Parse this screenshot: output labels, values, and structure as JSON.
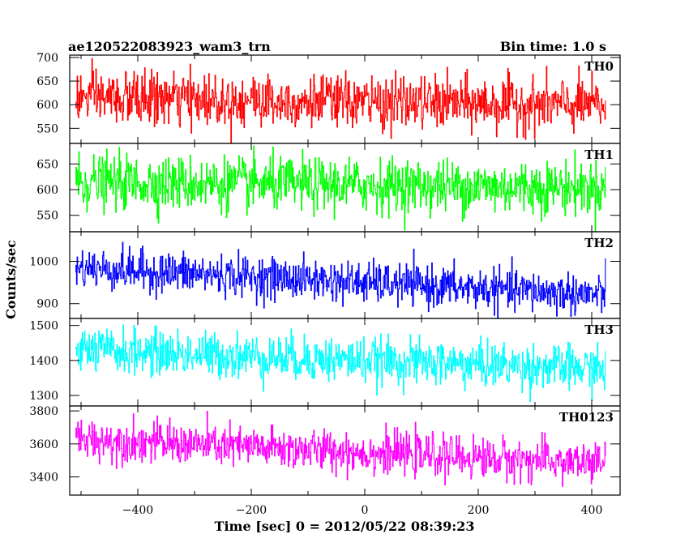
{
  "chart_data": {
    "type": "line",
    "title": "ae120522083923_wam3_trn",
    "bin_time_label": "Bin time: 1.0 s",
    "xlabel": "Time [sec] 0 = 2012/05/22 08:39:23",
    "ylabel": "Counts/sec",
    "xlim": [
      -520,
      450
    ],
    "x_ticks": [
      -400,
      -200,
      0,
      200,
      400
    ],
    "x_range": [
      -510,
      424
    ],
    "bin_sec": 1.0,
    "grid": false,
    "panels": [
      {
        "name": "TH0",
        "color": "#ff0000",
        "ylim": [
          518,
          705
        ],
        "y_ticks": [
          550,
          600,
          650,
          700
        ],
        "mean_start": 615,
        "mean_end": 598,
        "noise_sigma": 28
      },
      {
        "name": "TH1",
        "color": "#00ff00",
        "ylim": [
          518,
          690
        ],
        "y_ticks": [
          550,
          600,
          650
        ],
        "mean_start": 615,
        "mean_end": 603,
        "noise_sigma": 26
      },
      {
        "name": "TH2",
        "color": "#0000ff",
        "ylim": [
          865,
          1070
        ],
        "y_ticks": [
          900,
          1000
        ],
        "mean_start": 985,
        "mean_end": 920,
        "noise_sigma": 24
      },
      {
        "name": "TH3",
        "color": "#00ffff",
        "ylim": [
          1270,
          1520
        ],
        "y_ticks": [
          1300,
          1400,
          1500
        ],
        "mean_start": 1430,
        "mean_end": 1375,
        "noise_sigma": 32
      },
      {
        "name": "TH0123",
        "color": "#ff00ff",
        "ylim": [
          3290,
          3830
        ],
        "y_ticks": [
          3400,
          3600,
          3800
        ],
        "mean_start": 3630,
        "mean_end": 3480,
        "noise_sigma": 62
      }
    ]
  }
}
